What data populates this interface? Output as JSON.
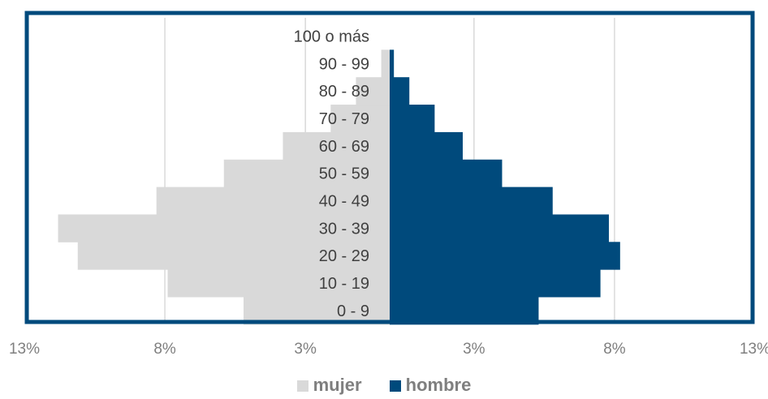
{
  "chart_data": {
    "type": "bar",
    "orientation": "horizontal-pyramid",
    "categories": [
      "0 - 9",
      "10 - 19",
      "20 - 29",
      "30 - 39",
      "40 - 49",
      "50 - 59",
      "60 - 69",
      "70 - 79",
      "80 - 89",
      "90 - 99",
      "100 o más"
    ],
    "series": [
      {
        "name": "mujer",
        "side": "left",
        "color": "#d9d9d9",
        "values": [
          5.2,
          7.9,
          11.1,
          11.8,
          8.3,
          5.9,
          3.8,
          2.1,
          1.2,
          0.3,
          0.0
        ]
      },
      {
        "name": "hombre",
        "side": "right",
        "color": "#004a7c",
        "values": [
          5.3,
          7.5,
          8.2,
          7.8,
          5.8,
          4.0,
          2.6,
          1.6,
          0.7,
          0.15,
          0.0
        ]
      }
    ],
    "xlim": [
      -13,
      13
    ],
    "x_ticks": [
      {
        "value": -13,
        "label": "13%"
      },
      {
        "value": -8,
        "label": "8%"
      },
      {
        "value": -3,
        "label": "3%"
      },
      {
        "value": 3,
        "label": "3%"
      },
      {
        "value": 8,
        "label": "8%"
      },
      {
        "value": 13,
        "label": "13%"
      }
    ],
    "grid": true,
    "legend_position": "bottom",
    "frame_color": "#004a7c",
    "title": "",
    "xlabel": "",
    "ylabel": ""
  },
  "legend": {
    "mujer": "mujer",
    "hombre": "hombre"
  }
}
